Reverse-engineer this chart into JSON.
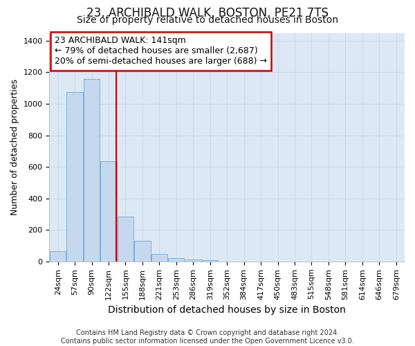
{
  "title": "23, ARCHIBALD WALK, BOSTON, PE21 7TS",
  "subtitle": "Size of property relative to detached houses in Boston",
  "xlabel": "Distribution of detached houses by size in Boston",
  "ylabel": "Number of detached properties",
  "bar_labels": [
    "24sqm",
    "57sqm",
    "90sqm",
    "122sqm",
    "155sqm",
    "188sqm",
    "221sqm",
    "253sqm",
    "286sqm",
    "319sqm",
    "352sqm",
    "384sqm",
    "417sqm",
    "450sqm",
    "483sqm",
    "515sqm",
    "548sqm",
    "581sqm",
    "614sqm",
    "646sqm",
    "679sqm"
  ],
  "bar_values": [
    65,
    1075,
    1160,
    635,
    285,
    130,
    48,
    20,
    14,
    10,
    0,
    0,
    0,
    0,
    0,
    0,
    0,
    0,
    0,
    0,
    0
  ],
  "bar_color": "#c5d8ee",
  "bar_edge_color": "#7aafd4",
  "annotation_text_line1": "23 ARCHIBALD WALK: 141sqm",
  "annotation_text_line2": "← 79% of detached houses are smaller (2,687)",
  "annotation_text_line3": "20% of semi-detached houses are larger (688) →",
  "annotation_box_facecolor": "#ffffff",
  "annotation_box_edgecolor": "#cc0000",
  "red_line_color": "#cc0000",
  "red_line_x": 3.47,
  "ylim": [
    0,
    1450
  ],
  "yticks": [
    0,
    200,
    400,
    600,
    800,
    1000,
    1200,
    1400
  ],
  "grid_color": "#ccdaec",
  "background_color": "#dce9f5",
  "footer_text": "Contains HM Land Registry data © Crown copyright and database right 2024.\nContains public sector information licensed under the Open Government Licence v3.0.",
  "title_fontsize": 12,
  "subtitle_fontsize": 10,
  "ylabel_fontsize": 9,
  "xlabel_fontsize": 10,
  "tick_fontsize": 8,
  "footer_fontsize": 7,
  "ann_fontsize": 9
}
